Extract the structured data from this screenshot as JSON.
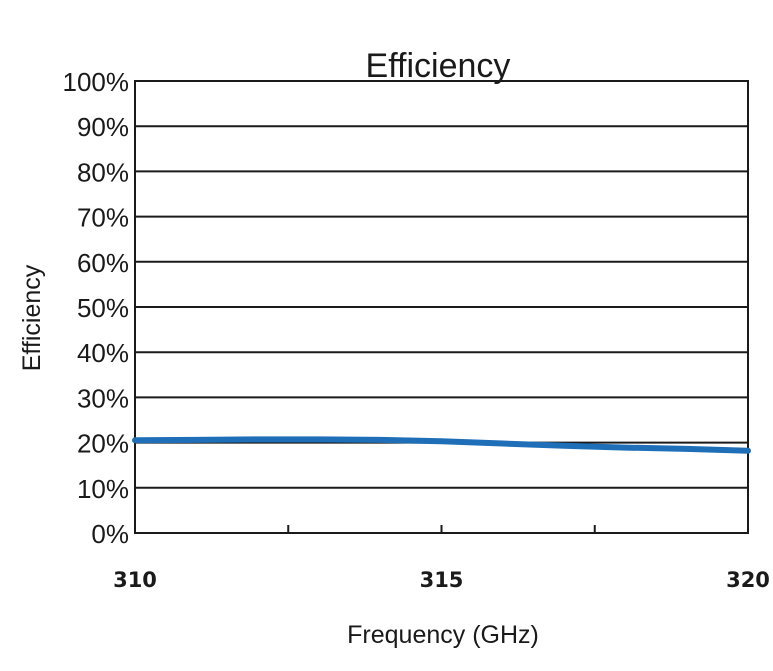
{
  "chart_data": {
    "type": "line",
    "title": "Efficiency",
    "xlabel": "Frequency (GHz)",
    "ylabel": "Efficiency",
    "x_ticks": [
      "310",
      "315",
      "320"
    ],
    "x_tick_values": [
      310,
      315,
      320
    ],
    "y_ticks": [
      "100%",
      "90%",
      "80%",
      "70%",
      "60%",
      "50%",
      "40%",
      "30%",
      "20%",
      "10%",
      "0%"
    ],
    "y_tick_values": [
      100,
      90,
      80,
      70,
      60,
      50,
      40,
      30,
      20,
      10,
      0
    ],
    "xlim": [
      310,
      320
    ],
    "ylim": [
      0,
      100
    ],
    "grid": true,
    "series": [
      {
        "color": "#1f6fb8",
        "x": [
          310,
          311,
          312,
          313,
          314,
          315,
          316,
          317,
          318,
          319,
          320
        ],
        "y": [
          20.5,
          20.6,
          20.7,
          20.7,
          20.6,
          20.3,
          19.8,
          19.3,
          18.9,
          18.6,
          18.2
        ]
      }
    ]
  }
}
